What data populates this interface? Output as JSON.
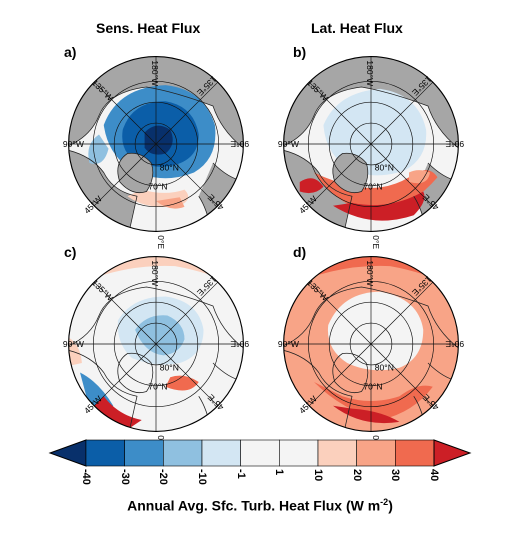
{
  "titles": {
    "left": "Sens. Heat Flux",
    "right": "Lat. Heat Flux"
  },
  "panels": [
    {
      "letter": "a)",
      "mode": "sens_a"
    },
    {
      "letter": "b)",
      "mode": "lat_b"
    },
    {
      "letter": "c)",
      "mode": "sens_c"
    },
    {
      "letter": "d)",
      "mode": "lat_d"
    }
  ],
  "map_labels": {
    "lon_180": "180°W",
    "lon_135w": "135°W",
    "lon_135e": "135°E",
    "lon_90w": "90°W",
    "lon_90e": "90°E",
    "lon_45w": "45°W",
    "lon_45e": "45°E",
    "lon_0": "0°E",
    "lat_70": "70°N",
    "lat_80": "80°N"
  },
  "colorbar": {
    "ticks": [
      "-40",
      "-30",
      "-20",
      "-10",
      "-1",
      "1",
      "10",
      "20",
      "30",
      "40"
    ],
    "colors": [
      "#08306b",
      "#0b5ea8",
      "#3d8dc8",
      "#8fc0e0",
      "#d3e6f3",
      "#f4f4f4",
      "#f4f4f4",
      "#fbd0bd",
      "#f8a487",
      "#f06a4f",
      "#cc1f26"
    ],
    "title": "Annual Avg. Sfc. Turb. Heat Flux (W m",
    "title_sup": "-2",
    "title_end": ")"
  },
  "land_color": "#a6a6a6"
}
